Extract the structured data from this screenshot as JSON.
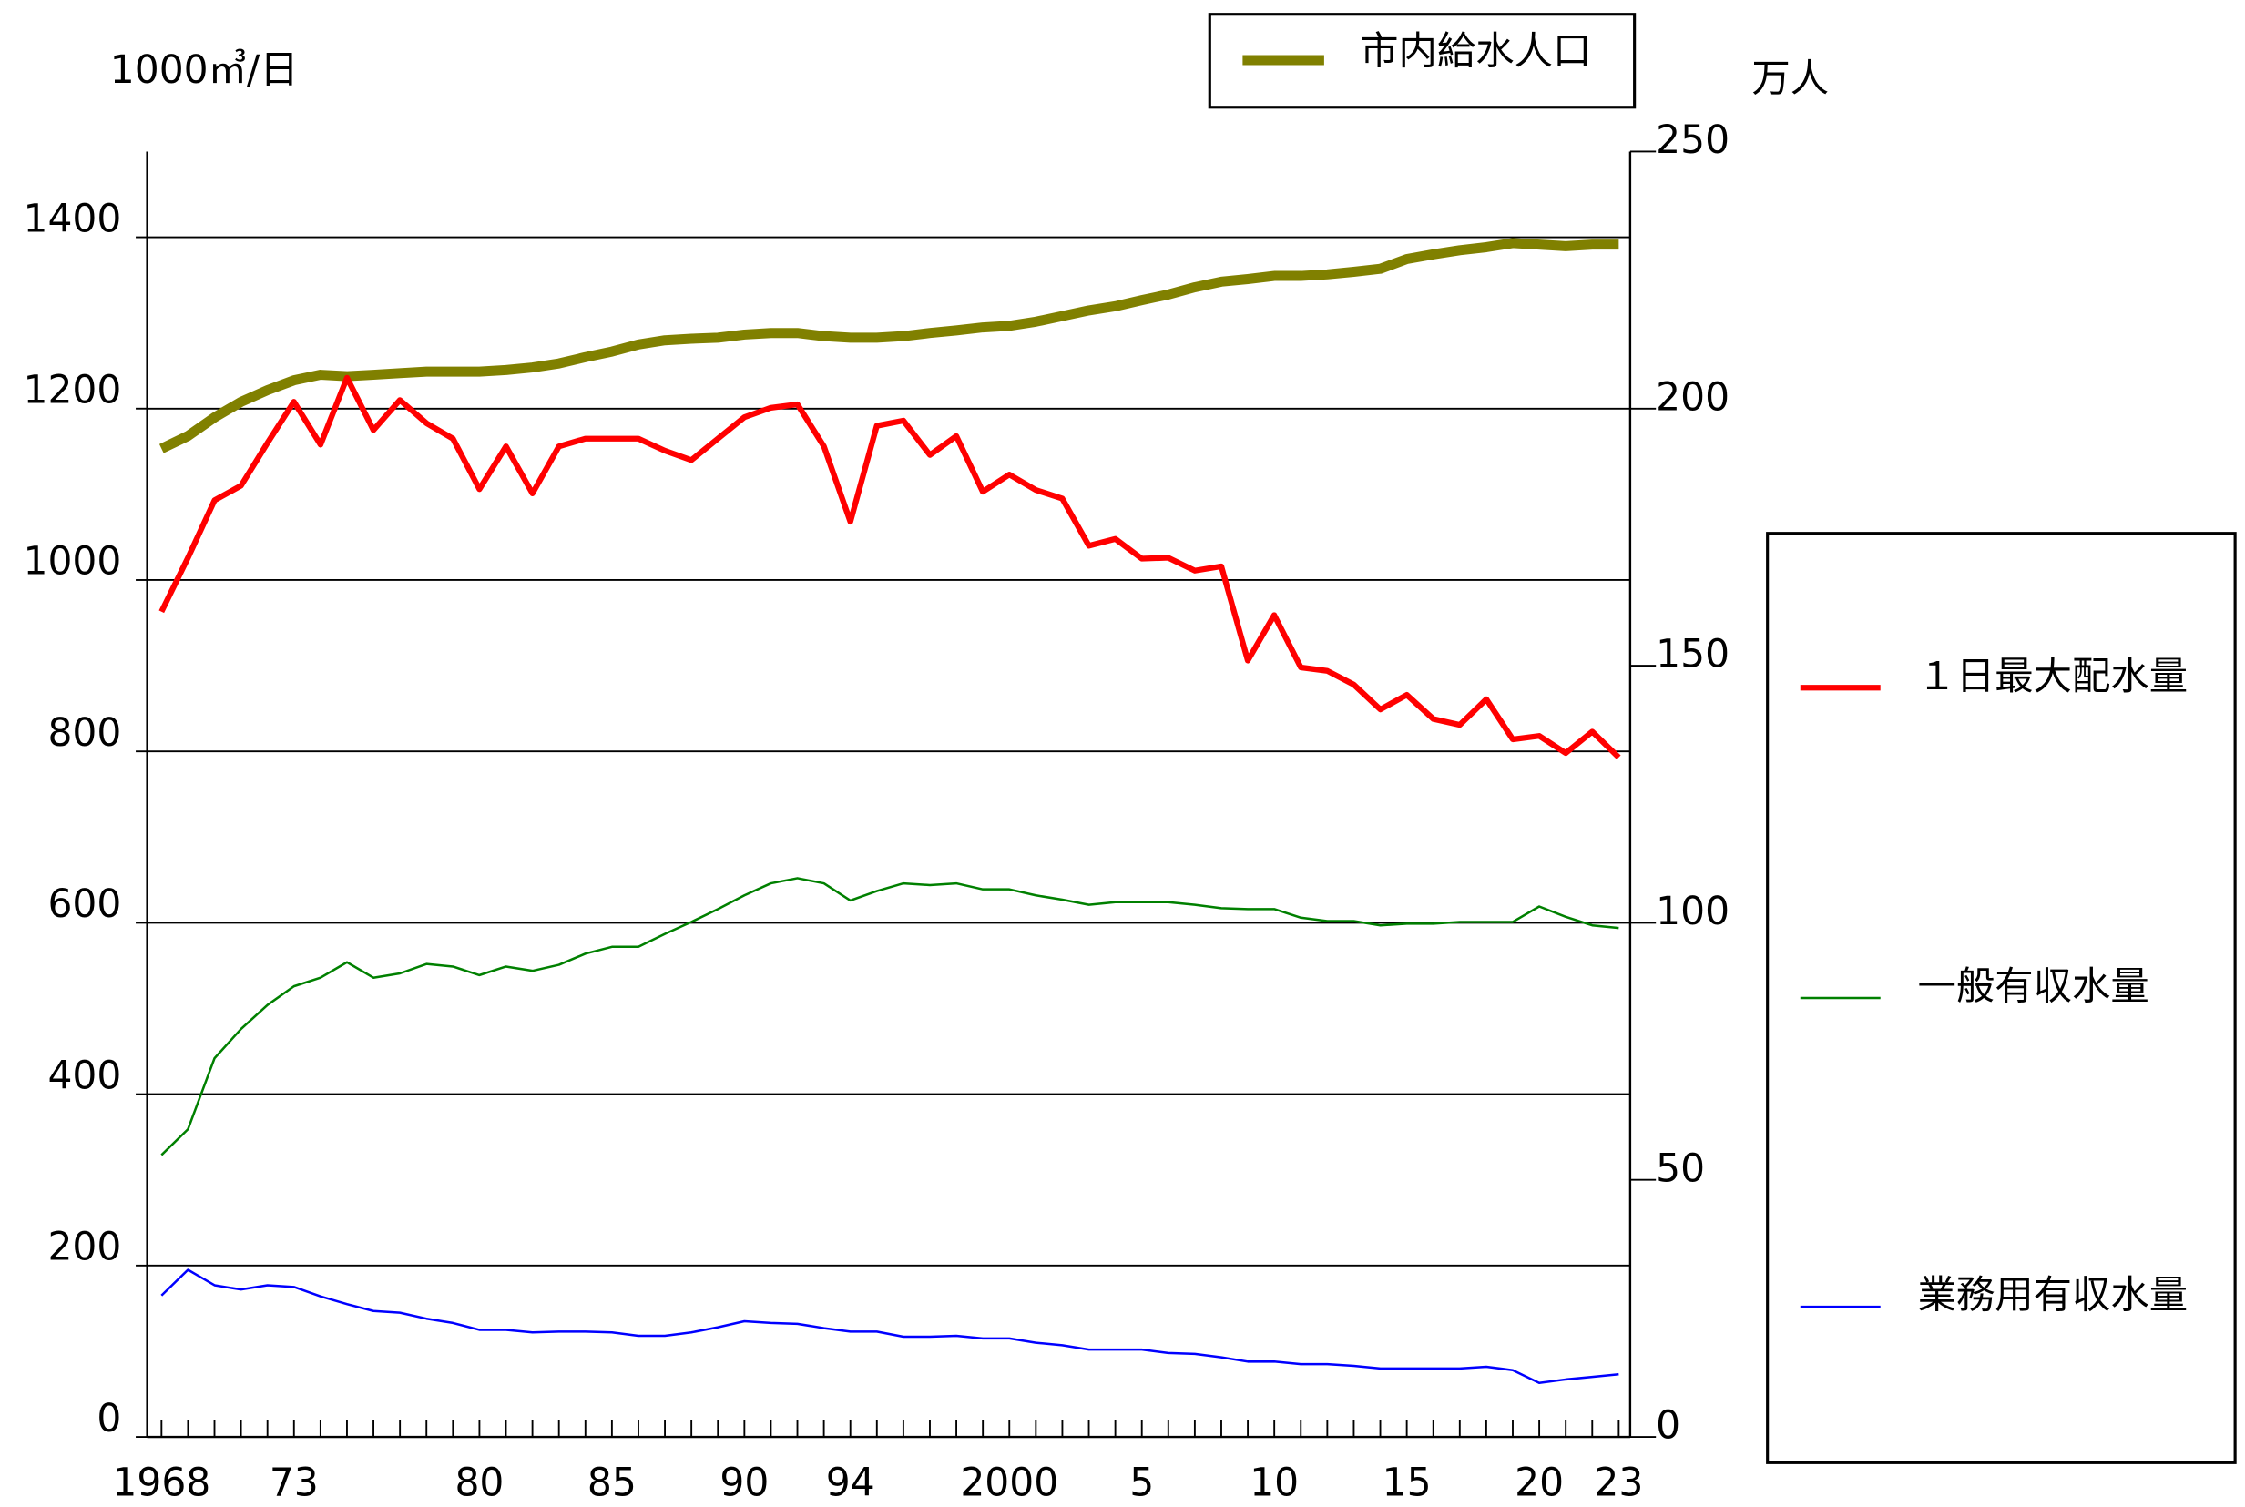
{
  "chart_data": {
    "type": "line",
    "y_axis_label": "1000㎥/日",
    "y2_axis_label": "万人",
    "categories": [
      "1968",
      null,
      null,
      null,
      null,
      "73",
      null,
      null,
      null,
      null,
      null,
      null,
      "80",
      null,
      null,
      null,
      null,
      "85",
      null,
      null,
      null,
      null,
      "90",
      null,
      null,
      null,
      "94",
      null,
      null,
      null,
      null,
      null,
      "2000",
      null,
      null,
      null,
      null,
      "5",
      null,
      null,
      null,
      null,
      "10",
      null,
      null,
      null,
      null,
      "15",
      null,
      null,
      null,
      null,
      "20",
      null,
      null,
      "23"
    ],
    "series": [
      {
        "name": "市内給水人口",
        "color": "#808000",
        "axis": "y2",
        "values": [
          192.2,
          194.7,
          198.3,
          201.3,
          203.6,
          205.5,
          206.6,
          206.3,
          206.6,
          206.9,
          207.2,
          207.2,
          207.2,
          207.5,
          208.0,
          208.8,
          210.0,
          211.1,
          212.5,
          213.3,
          213.6,
          213.8,
          214.4,
          214.7,
          214.7,
          214.1,
          213.8,
          213.8,
          214.1,
          214.7,
          215.2,
          215.8,
          216.1,
          216.9,
          218.0,
          219.1,
          219.9,
          221.1,
          222.2,
          223.6,
          224.7,
          225.2,
          225.8,
          225.8,
          226.1,
          226.6,
          227.2,
          229.1,
          230.0,
          230.8,
          231.4,
          232.2,
          231.9,
          231.6,
          231.9,
          231.9
        ]
      },
      {
        "name": "１日最大配水量",
        "color": "#ff0000",
        "values": [
          963,
          1026,
          1093,
          1110,
          1160,
          1208,
          1158,
          1236,
          1175,
          1210,
          1183,
          1165,
          1106,
          1156,
          1101,
          1156,
          1165,
          1165,
          1165,
          1151,
          1140,
          1165,
          1190,
          1201,
          1205,
          1156,
          1068,
          1180,
          1186,
          1146,
          1168,
          1103,
          1123,
          1105,
          1095,
          1040,
          1048,
          1025,
          1026,
          1011,
          1016,
          906,
          959,
          898,
          894,
          878,
          849,
          866,
          838,
          831,
          861,
          814,
          818,
          798,
          823,
          793
        ]
      },
      {
        "name": "一般有収水量",
        "color": "#008000",
        "values": [
          329,
          359,
          442,
          476,
          504,
          526,
          536,
          554,
          536,
          541,
          552,
          549,
          539,
          549,
          544,
          551,
          564,
          572,
          572,
          587,
          601,
          616,
          632,
          646,
          652,
          646,
          626,
          637,
          646,
          644,
          646,
          639,
          639,
          632,
          627,
          621,
          624,
          624,
          624,
          621,
          617,
          616,
          616,
          606,
          602,
          602,
          597,
          599,
          599,
          601,
          601,
          601,
          619,
          607,
          597,
          594
        ]
      },
      {
        "name": "業務用有収水量",
        "color": "#0000ff",
        "values": [
          165,
          195,
          177,
          172,
          177,
          175,
          164,
          155,
          147,
          145,
          138,
          133,
          125,
          125,
          122,
          123,
          123,
          122,
          118,
          118,
          122,
          128,
          135,
          133,
          132,
          127,
          123,
          123,
          117,
          117,
          118,
          115,
          115,
          110,
          107,
          102,
          102,
          102,
          98,
          97,
          93,
          88,
          88,
          85,
          85,
          83,
          80,
          80,
          80,
          80,
          82,
          78,
          63,
          67,
          70,
          73
        ]
      }
    ],
    "ylim": [
      0,
      1500
    ],
    "yticks": [
      0,
      200,
      400,
      600,
      800,
      1000,
      1200,
      1400
    ],
    "y2lim": [
      0,
      250
    ],
    "y2ticks": [
      0,
      50,
      100,
      150,
      200,
      250
    ],
    "grid": true
  }
}
